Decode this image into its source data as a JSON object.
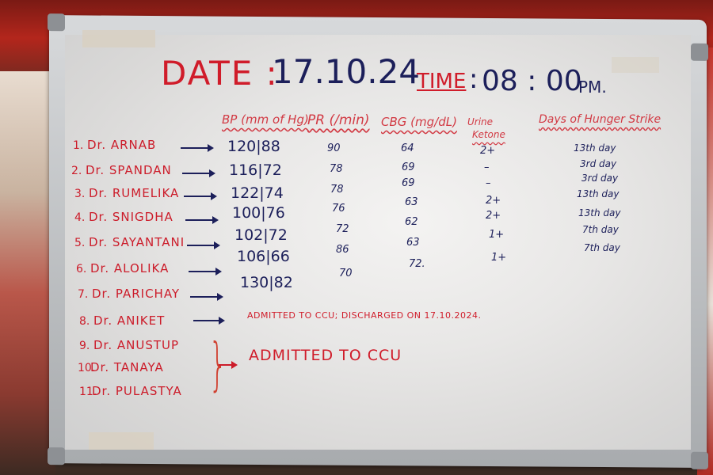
{
  "header": {
    "date_label": "DATE :",
    "date_value": "17.10.24",
    "time_label": "TIME",
    "time_colon": ":",
    "time_value": "08 : 00",
    "time_suffix": "PM."
  },
  "columns": {
    "bp": "BP (mm of Hg)",
    "pr": "PR (/min)",
    "cbg": "CBG (mg/dL)",
    "urine_ketone_line1": "Urine",
    "urine_ketone_line2": "Ketone",
    "days": "Days of Hunger Strike"
  },
  "rows": [
    {
      "num": "1.",
      "name": "Dr. ARNAB",
      "bp": "120|88",
      "pr": "90",
      "cbg": "64",
      "ketone": "2+",
      "days": "13th day"
    },
    {
      "num": "2.",
      "name": "Dr. SPANDAN",
      "bp": "116|72",
      "pr": "78",
      "cbg": "69",
      "ketone": "–",
      "days": "3rd day"
    },
    {
      "num": "3.",
      "name": "Dr. RUMELIKA",
      "bp": "122|74",
      "pr": "78",
      "cbg": "69",
      "ketone": "–",
      "days": "3rd day"
    },
    {
      "num": "4.",
      "name": "Dr. SNIGDHA",
      "bp": "100|76",
      "pr": "76",
      "cbg": "63",
      "ketone": "2+",
      "days": "13th day"
    },
    {
      "num": "5.",
      "name": "Dr. SAYANTANI",
      "bp": "102|72",
      "pr": "72",
      "cbg": "62",
      "ketone": "2+",
      "days": "13th day"
    },
    {
      "num": "6.",
      "name": "Dr. ALOLIKA",
      "bp": "106|66",
      "pr": "86",
      "cbg": "63",
      "ketone": "1+",
      "days": "7th day"
    },
    {
      "num": "7.",
      "name": "Dr. PARICHAY",
      "bp": "130|82",
      "pr": "70",
      "cbg": "72.",
      "ketone": "1+",
      "days": "7th day"
    },
    {
      "num": "8.",
      "name": "Dr. ANIKET"
    },
    {
      "num": "9.",
      "name": "Dr. ANUSTUP"
    },
    {
      "num": "10.",
      "name": "Dr. TANAYA"
    },
    {
      "num": "11.",
      "name": "Dr. PULASTYA"
    }
  ],
  "notes": {
    "aniket": "ADMITTED TO CCU; DISCHARGED ON 17.10.2024.",
    "group": "ADMITTED TO CCU"
  },
  "colors": {
    "red_marker": "#d01c2a",
    "blue_marker": "#1c1f5a",
    "board": "#ececeb",
    "frame": "#b9bcbf"
  }
}
